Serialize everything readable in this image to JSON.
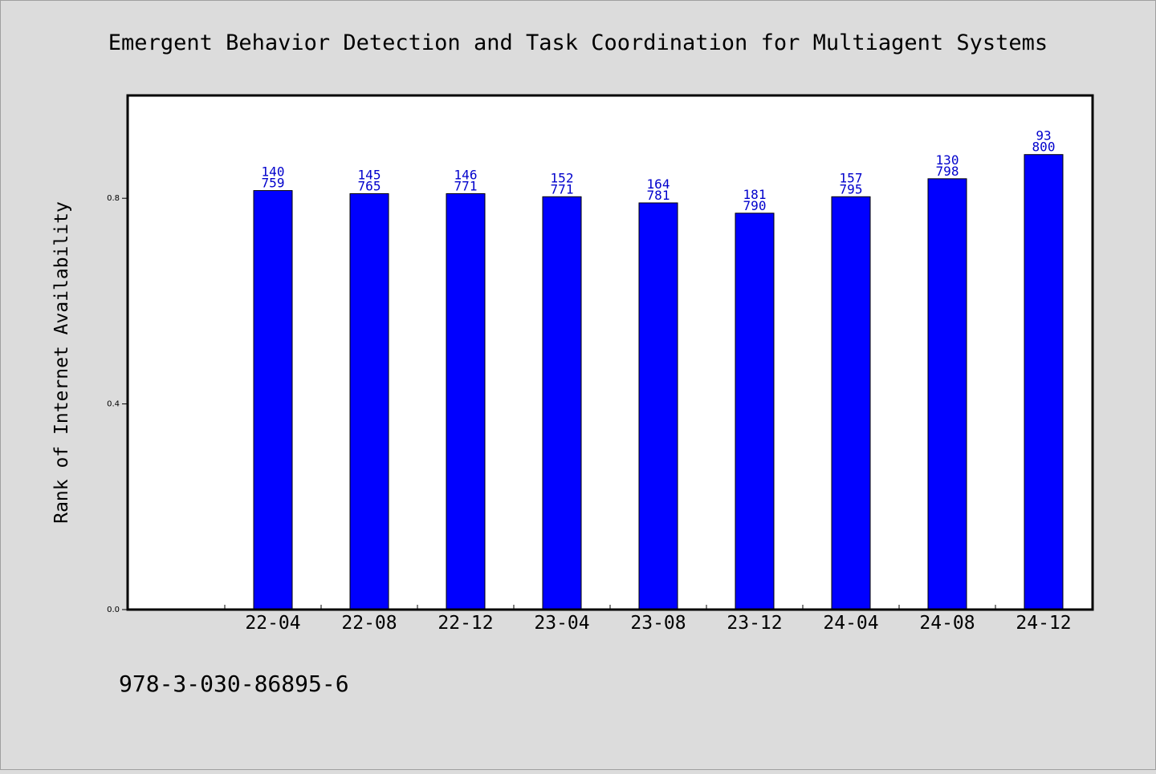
{
  "chart_data": {
    "type": "bar",
    "title": "Emergent Behavior Detection and Task Coordination for Multiagent Systems",
    "xlabel": "",
    "ylabel": "Rank of Internet Availability",
    "categories": [
      "22-04",
      "22-08",
      "22-12",
      "23-04",
      "23-08",
      "23-12",
      "24-04",
      "24-08",
      "24-12"
    ],
    "series": [
      {
        "values": [
          0.815,
          0.809,
          0.809,
          0.803,
          0.791,
          0.771,
          0.803,
          0.838,
          0.885
        ],
        "color": "#0000ff",
        "label_top": [
          "140",
          "145",
          "146",
          "152",
          "164",
          "181",
          "157",
          "130",
          "93"
        ],
        "label_bottom": [
          "759",
          "765",
          "771",
          "771",
          "781",
          "790",
          "795",
          "798",
          "800"
        ]
      }
    ],
    "ylim": [
      0,
      1.0
    ],
    "yticks": [
      "0.0",
      "0.4",
      "0.8"
    ],
    "grid": false,
    "legend": "none"
  },
  "footer_text": "978-3-030-86895-6",
  "colors": {
    "background": "#dcdcdc",
    "plot_background": "#ffffff",
    "bar": "#0000ff",
    "bar_label": "#0000cc"
  }
}
